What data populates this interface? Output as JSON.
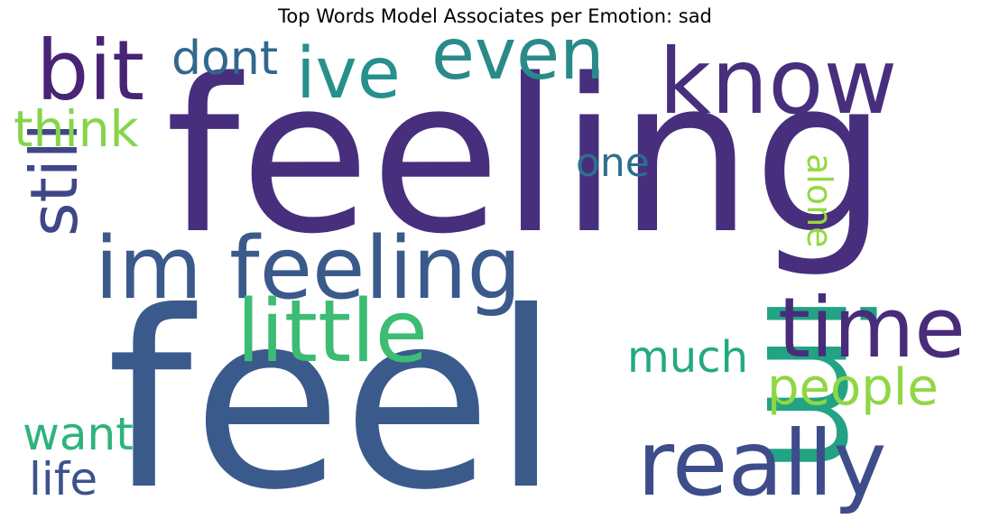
{
  "chart_data": {
    "type": "wordcloud",
    "title": "Top Words Model Associates per Emotion: sad",
    "words": [
      {
        "text": "feeling",
        "color": "#472f7d"
      },
      {
        "text": "feel",
        "color": "#3b5a8c"
      },
      {
        "text": "im",
        "color": "#22a384"
      },
      {
        "text": "know",
        "color": "#472f7d"
      },
      {
        "text": "im feeling",
        "color": "#3b5a8c"
      },
      {
        "text": "even",
        "color": "#2a8a8a"
      },
      {
        "text": "ive",
        "color": "#26918c"
      },
      {
        "text": "bit",
        "color": "#482475"
      },
      {
        "text": "little",
        "color": "#3dbc74"
      },
      {
        "text": "time",
        "color": "#482c79"
      },
      {
        "text": "really",
        "color": "#3e4d8a"
      },
      {
        "text": "still",
        "color": "#3f4788"
      },
      {
        "text": "people",
        "color": "#8fd744"
      },
      {
        "text": "dont",
        "color": "#31688e"
      },
      {
        "text": "think",
        "color": "#86d549"
      },
      {
        "text": "one",
        "color": "#2e6f8e"
      },
      {
        "text": "alone",
        "color": "#95d840"
      },
      {
        "text": "much",
        "color": "#23a983"
      },
      {
        "text": "want",
        "color": "#2eb37c"
      },
      {
        "text": "life",
        "color": "#3b528b"
      }
    ]
  }
}
